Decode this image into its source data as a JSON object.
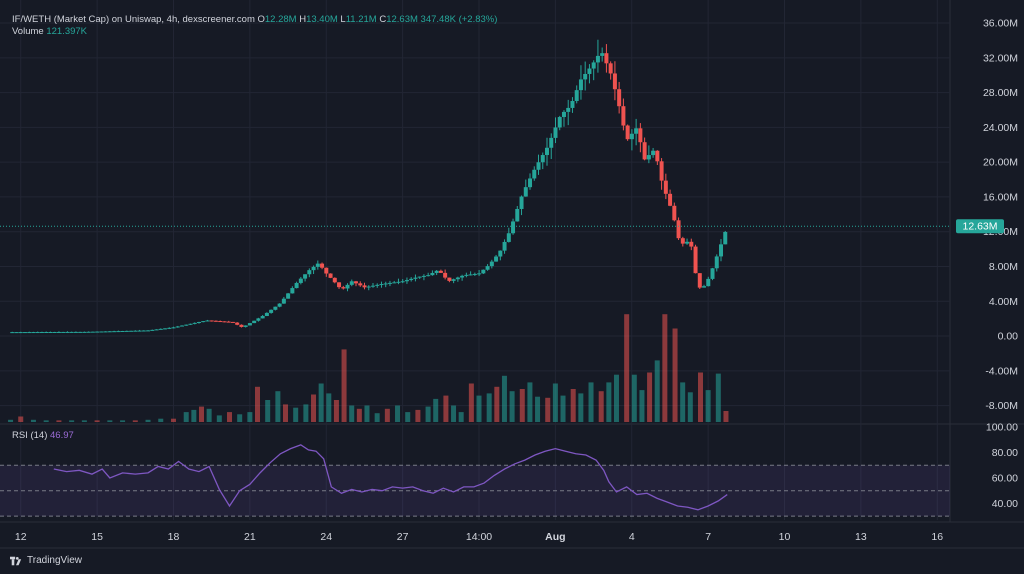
{
  "legend": {
    "symbol": "IF/WETH (Market Cap) on Uniswap, 4h, dexscreener.com",
    "o_label": "O",
    "o_value": "12.28M",
    "h_label": "H",
    "h_value": "13.40M",
    "l_label": "L",
    "l_value": "11.21M",
    "c_label": "C",
    "c_value": "12.63M",
    "change": "347.48K (+2.83%)",
    "volume_label": "Volume",
    "volume_value": "121.397K"
  },
  "rsi_legend": {
    "label": "RSI (14)",
    "value": "46.97"
  },
  "footer": {
    "brand": "TradingView"
  },
  "colors": {
    "background": "#161a25",
    "up": "#26a69a",
    "down": "#ef5350",
    "rsi_line": "#7e57c2",
    "grid": "#222634",
    "text": "#d1d4dc"
  },
  "chart_data": [
    {
      "type": "candlestick",
      "title": "IF/WETH (Market Cap) on Uniswap, 4h, dexscreener.com",
      "y_ticks": [
        "36.00M",
        "32.00M",
        "28.00M",
        "24.00M",
        "20.00M",
        "16.00M",
        "12.00M",
        "8.00M",
        "4.00M",
        "0.00",
        "-4.00M",
        "-8.00M"
      ],
      "y_tick_values": [
        36,
        32,
        28,
        24,
        20,
        16,
        12,
        8,
        4,
        0,
        -4,
        -8
      ],
      "ylim": [
        -10,
        37.5
      ],
      "y_unit": "M",
      "last_price_label": "12.63M",
      "last_price_value": 12.63,
      "x_ticks": [
        "12",
        "15",
        "18",
        "21",
        "24",
        "27",
        "14:00",
        "Aug",
        "4",
        "7",
        "10",
        "13",
        "16"
      ],
      "x_tick_positions": [
        1,
        4,
        7,
        10,
        13,
        16,
        19,
        22,
        25,
        28,
        31,
        34,
        37
      ],
      "x_start": 0.5,
      "x_end": 37.5,
      "price_series": [
        [
          0.5,
          0.45
        ],
        [
          3.5,
          0.48
        ],
        [
          6.0,
          0.65
        ],
        [
          7.0,
          1.0
        ],
        [
          8.3,
          1.8
        ],
        [
          9.3,
          1.6
        ],
        [
          9.7,
          1.0
        ],
        [
          10.5,
          2.3
        ],
        [
          11.2,
          3.8
        ],
        [
          11.8,
          6.0
        ],
        [
          12.3,
          7.5
        ],
        [
          12.7,
          8.4
        ],
        [
          13.0,
          7.2
        ],
        [
          13.3,
          6.3
        ],
        [
          13.6,
          5.3
        ],
        [
          14.0,
          6.3
        ],
        [
          14.5,
          5.6
        ],
        [
          15.2,
          6.0
        ],
        [
          16.0,
          6.3
        ],
        [
          16.6,
          6.8
        ],
        [
          17.0,
          7.0
        ],
        [
          17.4,
          7.6
        ],
        [
          17.8,
          6.3
        ],
        [
          18.4,
          7.0
        ],
        [
          19.0,
          7.2
        ],
        [
          19.4,
          8.2
        ],
        [
          19.8,
          9.6
        ],
        [
          20.2,
          12.0
        ],
        [
          20.7,
          16.3
        ],
        [
          21.2,
          19.3
        ],
        [
          21.7,
          21.8
        ],
        [
          22.2,
          25.4
        ],
        [
          22.6,
          26.5
        ],
        [
          23.0,
          29.5
        ],
        [
          23.4,
          31.0
        ],
        [
          23.8,
          32.8
        ],
        [
          24.2,
          30.0
        ],
        [
          24.5,
          26.5
        ],
        [
          24.8,
          22.5
        ],
        [
          25.2,
          24.0
        ],
        [
          25.5,
          20.3
        ],
        [
          25.9,
          21.5
        ],
        [
          26.2,
          17.5
        ],
        [
          26.6,
          14.2
        ],
        [
          26.9,
          10.5
        ],
        [
          27.3,
          11.0
        ],
        [
          27.6,
          5.5
        ],
        [
          27.9,
          5.8
        ],
        [
          28.2,
          8.0
        ],
        [
          28.5,
          10.5
        ],
        [
          28.75,
          12.63
        ]
      ],
      "volume": [
        [
          0.6,
          0.2
        ],
        [
          1.0,
          0.5
        ],
        [
          1.5,
          0.2
        ],
        [
          2.0,
          0.15
        ],
        [
          2.5,
          0.15
        ],
        [
          3.0,
          0.15
        ],
        [
          3.5,
          0.15
        ],
        [
          4.0,
          0.15
        ],
        [
          4.5,
          0.15
        ],
        [
          5.0,
          0.15
        ],
        [
          5.5,
          0.15
        ],
        [
          6.0,
          0.2
        ],
        [
          6.5,
          0.3
        ],
        [
          7.0,
          0.3
        ],
        [
          7.5,
          0.9
        ],
        [
          7.8,
          1.1
        ],
        [
          8.1,
          1.4
        ],
        [
          8.4,
          1.2
        ],
        [
          8.8,
          0.6
        ],
        [
          9.2,
          0.9
        ],
        [
          9.6,
          0.7
        ],
        [
          10.0,
          0.9
        ],
        [
          10.3,
          3.2
        ],
        [
          10.7,
          2.0
        ],
        [
          11.1,
          2.8
        ],
        [
          11.4,
          1.6
        ],
        [
          11.8,
          1.3
        ],
        [
          12.2,
          1.6
        ],
        [
          12.5,
          2.5
        ],
        [
          12.8,
          3.5
        ],
        [
          13.1,
          2.6
        ],
        [
          13.4,
          2.0
        ],
        [
          13.7,
          6.6
        ],
        [
          14.0,
          1.5
        ],
        [
          14.3,
          1.2
        ],
        [
          14.6,
          1.5
        ],
        [
          15.0,
          0.8
        ],
        [
          15.4,
          1.2
        ],
        [
          15.8,
          1.5
        ],
        [
          16.2,
          0.9
        ],
        [
          16.6,
          1.1
        ],
        [
          17.0,
          1.4
        ],
        [
          17.3,
          2.1
        ],
        [
          17.7,
          2.4
        ],
        [
          18.0,
          1.5
        ],
        [
          18.3,
          0.9
        ],
        [
          18.7,
          3.5
        ],
        [
          19.0,
          2.4
        ],
        [
          19.4,
          2.6
        ],
        [
          19.7,
          3.2
        ],
        [
          20.0,
          4.2
        ],
        [
          20.3,
          2.8
        ],
        [
          20.7,
          3.0
        ],
        [
          21.0,
          3.6
        ],
        [
          21.3,
          2.3
        ],
        [
          21.7,
          2.2
        ],
        [
          22.0,
          3.5
        ],
        [
          22.3,
          2.4
        ],
        [
          22.7,
          3.0
        ],
        [
          23.0,
          2.6
        ],
        [
          23.4,
          3.6
        ],
        [
          23.8,
          2.8
        ],
        [
          24.1,
          3.6
        ],
        [
          24.4,
          4.3
        ],
        [
          24.8,
          9.8
        ],
        [
          25.1,
          4.3
        ],
        [
          25.4,
          2.9
        ],
        [
          25.7,
          4.5
        ],
        [
          26.0,
          5.6
        ],
        [
          26.3,
          9.8
        ],
        [
          26.7,
          8.5
        ],
        [
          27.0,
          3.6
        ],
        [
          27.3,
          2.7
        ],
        [
          27.7,
          4.5
        ],
        [
          28.0,
          2.9
        ],
        [
          28.4,
          4.4
        ],
        [
          28.7,
          1.0
        ]
      ],
      "volume_scale_max": 10
    },
    {
      "type": "line",
      "title": "RSI (14)",
      "y_ticks": [
        "100.00",
        "80.00",
        "60.00",
        "40.00"
      ],
      "y_tick_values": [
        100,
        80,
        60,
        40
      ],
      "ylim": [
        27,
        100
      ],
      "band": [
        30,
        70
      ],
      "midline": 50,
      "last_value": 46.97,
      "series": [
        [
          2.3,
          67
        ],
        [
          2.8,
          65
        ],
        [
          3.3,
          66
        ],
        [
          3.8,
          63
        ],
        [
          4.2,
          67
        ],
        [
          4.5,
          60
        ],
        [
          5.0,
          64
        ],
        [
          5.5,
          63
        ],
        [
          6.0,
          64
        ],
        [
          6.4,
          69
        ],
        [
          6.8,
          67
        ],
        [
          7.2,
          73
        ],
        [
          7.6,
          67
        ],
        [
          8.0,
          65
        ],
        [
          8.4,
          69
        ],
        [
          8.8,
          51
        ],
        [
          9.2,
          38
        ],
        [
          9.6,
          50
        ],
        [
          10.0,
          55
        ],
        [
          10.4,
          64
        ],
        [
          10.8,
          72
        ],
        [
          11.2,
          79
        ],
        [
          11.6,
          83
        ],
        [
          12.0,
          86
        ],
        [
          12.3,
          82
        ],
        [
          12.6,
          81
        ],
        [
          12.9,
          75
        ],
        [
          13.2,
          53
        ],
        [
          13.6,
          48
        ],
        [
          14.0,
          51
        ],
        [
          14.4,
          49
        ],
        [
          14.8,
          51
        ],
        [
          15.2,
          50
        ],
        [
          15.6,
          53
        ],
        [
          16.0,
          52
        ],
        [
          16.4,
          53
        ],
        [
          16.8,
          50
        ],
        [
          17.2,
          48
        ],
        [
          17.6,
          52
        ],
        [
          18.0,
          49
        ],
        [
          18.4,
          53
        ],
        [
          18.8,
          53
        ],
        [
          19.2,
          56
        ],
        [
          19.6,
          62
        ],
        [
          20.0,
          67
        ],
        [
          20.4,
          71
        ],
        [
          20.8,
          74
        ],
        [
          21.2,
          78
        ],
        [
          21.6,
          81
        ],
        [
          22.0,
          83
        ],
        [
          22.4,
          81
        ],
        [
          22.8,
          79
        ],
        [
          23.2,
          78
        ],
        [
          23.6,
          74
        ],
        [
          23.9,
          66
        ],
        [
          24.1,
          57
        ],
        [
          24.4,
          49
        ],
        [
          24.8,
          53
        ],
        [
          25.2,
          47
        ],
        [
          25.6,
          48
        ],
        [
          26.0,
          44
        ],
        [
          26.4,
          41
        ],
        [
          26.8,
          38
        ],
        [
          27.2,
          37
        ],
        [
          27.6,
          35
        ],
        [
          28.0,
          38
        ],
        [
          28.4,
          42
        ],
        [
          28.75,
          46.97
        ]
      ]
    }
  ]
}
